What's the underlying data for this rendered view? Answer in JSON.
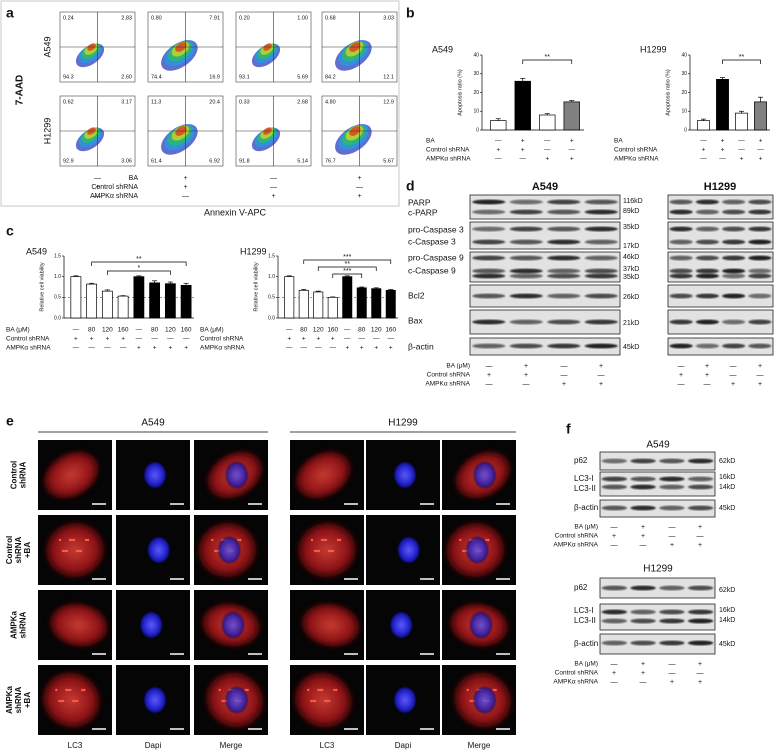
{
  "panel_a": {
    "label": "a",
    "y_axis": "7-AAD",
    "x_axis": "Annexin V-APC",
    "rows": [
      {
        "name": "A549",
        "quadrants": [
          [
            "0.24",
            "2.83",
            "94.3",
            "2.60"
          ],
          [
            "0.80",
            "7.91",
            "74.4",
            "16.9"
          ],
          [
            "0.20",
            "1.00",
            "93.1",
            "5.69"
          ],
          [
            "0.68",
            "3.03",
            "84.2",
            "12.1"
          ]
        ]
      },
      {
        "name": "H1299",
        "quadrants": [
          [
            "0.62",
            "3.17",
            "92.9",
            "3.06"
          ],
          [
            "11.3",
            "20.4",
            "61.4",
            "6.92"
          ],
          [
            "0.33",
            "2.68",
            "91.8",
            "5.14"
          ],
          [
            "4.80",
            "12.9",
            "76.7",
            "5.67"
          ]
        ]
      }
    ],
    "treatments": [
      {
        "name": "BA",
        "signs": [
          "—",
          "+",
          "—",
          "+"
        ]
      },
      {
        "name": "Control shRNA",
        "signs": [
          "+",
          "+",
          "—",
          "—"
        ]
      },
      {
        "name": "AMPKα shRNA",
        "signs": [
          "—",
          "—",
          "+",
          "+"
        ]
      }
    ]
  },
  "panel_b": {
    "label": "b"
  },
  "panel_c": {
    "label": "c"
  },
  "chart_data": [
    {
      "type": "bar",
      "title": "A549",
      "ylabel": "Apoptosis ratio (%)",
      "values": [
        5,
        26,
        8,
        15
      ],
      "errors": [
        1,
        1.5,
        0.7,
        0.7
      ],
      "colors": [
        "#ffffff",
        "#000000",
        "#ffffff",
        "#808080"
      ],
      "ylim": [
        0,
        40
      ],
      "yticks": [
        0,
        10,
        20,
        30,
        40
      ],
      "significance": [
        "**"
      ],
      "treatments": [
        {
          "name": "BA",
          "signs": [
            "—",
            "+",
            "—",
            "+"
          ]
        },
        {
          "name": "Control shRNA",
          "signs": [
            "+",
            "+",
            "—",
            "—"
          ]
        },
        {
          "name": "AMPKα shRNA",
          "signs": [
            "—",
            "—",
            "+",
            "+"
          ]
        }
      ]
    },
    {
      "type": "bar",
      "title": "H1299",
      "ylabel": "Apoptosis ratio (%)",
      "values": [
        5,
        27,
        9,
        15
      ],
      "errors": [
        0.8,
        1,
        1,
        2.5
      ],
      "colors": [
        "#ffffff",
        "#000000",
        "#ffffff",
        "#808080"
      ],
      "ylim": [
        0,
        40
      ],
      "yticks": [
        0,
        10,
        20,
        30,
        40
      ],
      "significance": [
        "**"
      ],
      "treatments": [
        {
          "name": "BA",
          "signs": [
            "—",
            "+",
            "—",
            "+"
          ]
        },
        {
          "name": "Control shRNA",
          "signs": [
            "+",
            "+",
            "—",
            "—"
          ]
        },
        {
          "name": "AMPKα shRNA",
          "signs": [
            "—",
            "—",
            "+",
            "+"
          ]
        }
      ]
    },
    {
      "type": "bar",
      "title": "A549",
      "ylabel": "Relative cell viability",
      "values": [
        1,
        0.82,
        0.65,
        0.53,
        1,
        0.85,
        0.83,
        0.79
      ],
      "errors": [
        0.02,
        0.02,
        0.03,
        0.01,
        0.02,
        0.05,
        0.04,
        0.05
      ],
      "colors": [
        "#ffffff",
        "#ffffff",
        "#ffffff",
        "#ffffff",
        "#000000",
        "#000000",
        "#000000",
        "#000000"
      ],
      "ylim": [
        0,
        1.5
      ],
      "yticks": [
        {
          "value": 0,
          "label": "0.0"
        },
        0.5,
        {
          "value": 1,
          "label": "1.0"
        },
        1.5
      ],
      "reference_line": 0.5,
      "significance": [
        "**",
        "*"
      ],
      "treatments": [
        {
          "name": "BA (μM)",
          "signs": [
            "—",
            "80",
            "120",
            "160",
            "—",
            "80",
            "120",
            "160"
          ]
        },
        {
          "name": "Control shRNA",
          "signs": [
            "+",
            "+",
            "+",
            "+",
            "—",
            "—",
            "—",
            "—"
          ]
        },
        {
          "name": "AMPKα shRNA",
          "signs": [
            "—",
            "—",
            "—",
            "—",
            "+",
            "+",
            "+",
            "+"
          ]
        }
      ]
    },
    {
      "type": "bar",
      "title": "H1299",
      "ylabel": "Relative cell viability",
      "values": [
        1,
        0.67,
        0.63,
        0.5,
        1,
        0.73,
        0.71,
        0.67
      ],
      "errors": [
        0.02,
        0.02,
        0.02,
        0.01,
        0.02,
        0.02,
        0.02,
        0.02
      ],
      "colors": [
        "#ffffff",
        "#ffffff",
        "#ffffff",
        "#ffffff",
        "#000000",
        "#000000",
        "#000000",
        "#000000"
      ],
      "ylim": [
        0,
        1.5
      ],
      "yticks": [
        {
          "value": 0,
          "label": "0.0"
        },
        0.5,
        {
          "value": 1,
          "label": "1.0"
        },
        1.5
      ],
      "reference_line": 0.5,
      "significance": [
        "***",
        "**",
        "***"
      ],
      "treatments": [
        {
          "name": "BA (μM)",
          "signs": [
            "—",
            "80",
            "120",
            "160",
            "—",
            "80",
            "120",
            "160"
          ]
        },
        {
          "name": "Control shRNA",
          "signs": [
            "+",
            "+",
            "+",
            "+",
            "—",
            "—",
            "—",
            "—"
          ]
        },
        {
          "name": "AMPKα shRNA",
          "signs": [
            "—",
            "—",
            "—",
            "—",
            "+",
            "+",
            "+",
            "+"
          ]
        }
      ]
    }
  ],
  "panel_d": {
    "label": "d",
    "cells": [
      "A549",
      "H1299"
    ],
    "proteins": [
      "PARP",
      "c-PARP",
      "pro-Caspase 3",
      "c-Caspase 3",
      "pro-Caspase 9",
      "c-Caspase 9",
      "Bcl2",
      "Bax",
      "β-actin"
    ],
    "markers": [
      "116kD",
      "89kD",
      "35kD",
      "17kD",
      "46kD",
      "37kD",
      "35kD",
      "26kD",
      "21kD",
      "45kD"
    ],
    "treatments": [
      {
        "name": "BA (μM)",
        "signs": [
          "—",
          "+",
          "—",
          "+",
          "—",
          "+",
          "—",
          "+"
        ]
      },
      {
        "name": "Control shRNA",
        "signs": [
          "+",
          "+",
          "—",
          "—",
          "+",
          "+",
          "—",
          "—"
        ]
      },
      {
        "name": "AMPKα shRNA",
        "signs": [
          "—",
          "—",
          "+",
          "+",
          "—",
          "—",
          "+",
          "+"
        ]
      }
    ]
  },
  "panel_e": {
    "label": "e",
    "cells": [
      "A549",
      "H1299"
    ],
    "rows": [
      [
        "Control",
        "shRNA"
      ],
      [
        "Control",
        "shRNA",
        "+BA"
      ],
      [
        "AMPKa",
        "shRNA"
      ],
      [
        "AMPKa",
        "shRNA",
        "+BA"
      ]
    ],
    "columns": [
      "LC3",
      "Dapi",
      "Merge",
      "LC3",
      "Dapi",
      "Merge"
    ]
  },
  "panel_f": {
    "label": "f",
    "blocks": [
      {
        "cell": "A549",
        "proteins": [
          "p62",
          "LC3-I",
          "LC3-II",
          "β-actin"
        ],
        "markers": [
          "62kD",
          "16kD",
          "14kD",
          "45kD"
        ],
        "treatments": [
          {
            "name": "BA (μM)",
            "signs": [
              "—",
              "+",
              "—",
              "+"
            ]
          },
          {
            "name": "Control shRNA",
            "signs": [
              "+",
              "+",
              "—",
              "—"
            ]
          },
          {
            "name": "AMPKα shRNA",
            "signs": [
              "—",
              "—",
              "+",
              "+"
            ]
          }
        ]
      },
      {
        "cell": "H1299",
        "proteins": [
          "p62",
          "LC3-I",
          "LC3-II",
          "β-actin"
        ],
        "markers": [
          "62kD",
          "16kD",
          "14kD",
          "45kD"
        ],
        "treatments": [
          {
            "name": "BA (μM)",
            "signs": [
              "—",
              "+",
              "—",
              "+"
            ]
          },
          {
            "name": "Control shRNA",
            "signs": [
              "+",
              "+",
              "—",
              "—"
            ]
          },
          {
            "name": "AMPKα shRNA",
            "signs": [
              "—",
              "—",
              "+",
              "+"
            ]
          }
        ]
      }
    ]
  }
}
